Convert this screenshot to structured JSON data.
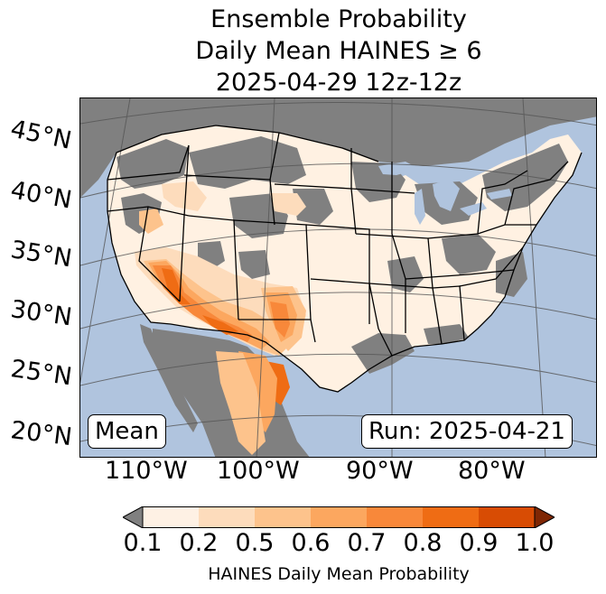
{
  "title": {
    "line1": "Ensemble Probability",
    "line2": "Daily Mean HAINES ≥ 6",
    "line3": "2025-04-29 12z-12z"
  },
  "map": {
    "projection": "Lambert conformal",
    "colors": {
      "ocean": "#b0c4de",
      "no_data_land": "#808080",
      "lakes": "#b0c4de",
      "border": "#000000",
      "graticule": "#555555"
    },
    "lat_labels": [
      "45°N",
      "40°N",
      "35°N",
      "30°N",
      "25°N",
      "20°N"
    ],
    "lon_labels": [
      "110°W",
      "100°W",
      "90°W",
      "80°W"
    ],
    "left_box": "Mean",
    "right_box": "Run: 2025-04-21"
  },
  "colorbar": {
    "ticks": [
      "0.1",
      "0.2",
      "0.5",
      "0.6",
      "0.7",
      "0.8",
      "0.9",
      "1.0"
    ],
    "colors": [
      "#fef1e4",
      "#fddcbc",
      "#fdc38c",
      "#fca75f",
      "#f8883a",
      "#ef6c14",
      "#d84c04"
    ],
    "under_color": "#808080",
    "over_color": "#7f2704",
    "label": "HAINES Daily Mean Probability"
  }
}
